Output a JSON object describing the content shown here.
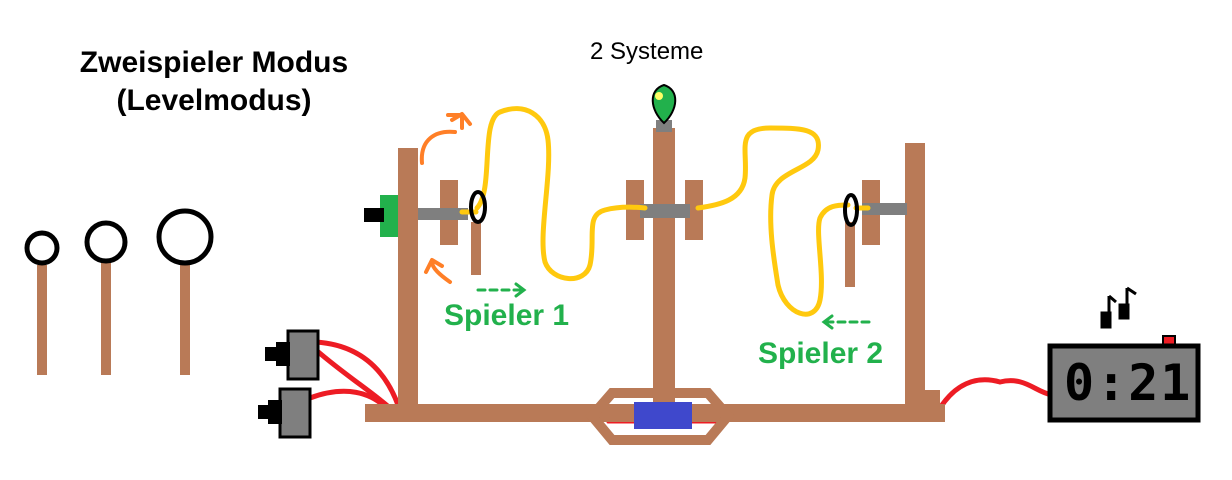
{
  "title": {
    "line1": "Zweispieler Modus",
    "line2": "(Levelmodus)"
  },
  "systems_label": "2 Systeme",
  "players": [
    {
      "label": "Spieler 1"
    },
    {
      "label": "Spieler 2"
    }
  ],
  "timer": {
    "display": "0:21"
  },
  "colors": {
    "wood": "#b97a57",
    "wire_yellow": "#ffc90e",
    "wire_red": "#ed1c24",
    "player_green": "#22b14c",
    "lamp_green": "#22b14c",
    "arrow_orange": "#ff7f27",
    "battery_blue": "#3f48cc",
    "metal_gray": "#7f7f7f"
  }
}
